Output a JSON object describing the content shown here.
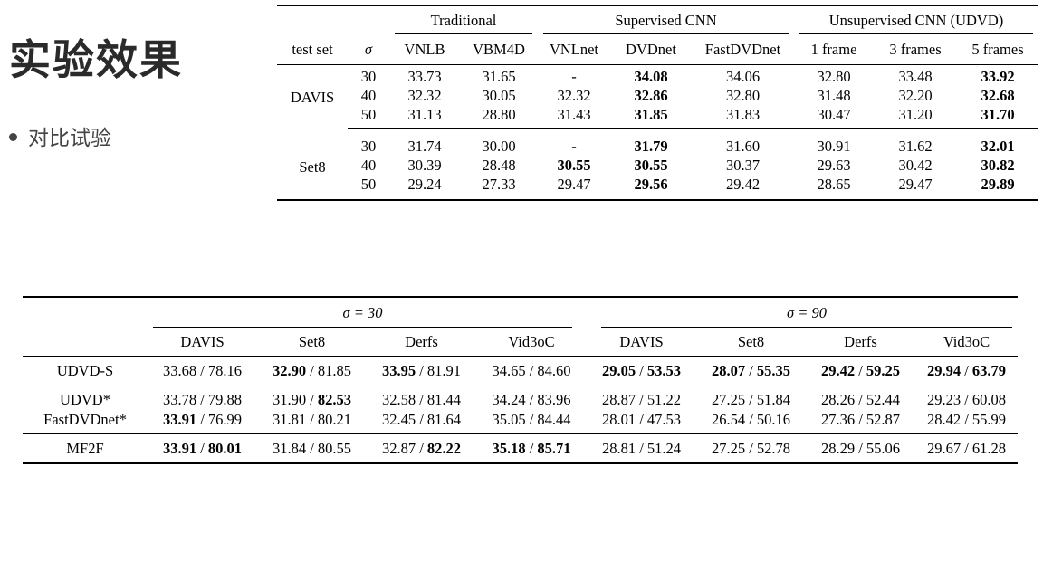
{
  "slide": {
    "title": "实验效果",
    "bullet": "对比试验"
  },
  "table1": {
    "groups": [
      "Traditional",
      "Supervised CNN",
      "Unsupervised CNN (UDVD)"
    ],
    "columns": [
      "test set",
      "σ",
      "VNLB",
      "VBM4D",
      "VNLnet",
      "DVDnet",
      "FastDVDnet",
      "1 frame",
      "3 frames",
      "5 frames"
    ],
    "rows": [
      {
        "set": "DAVIS",
        "sigma": "30",
        "values": [
          "33.73",
          "31.65",
          "-",
          "34.08",
          "34.06",
          "32.80",
          "33.48",
          "33.92"
        ],
        "bold": [
          3,
          7
        ]
      },
      {
        "set": "",
        "sigma": "40",
        "values": [
          "32.32",
          "30.05",
          "32.32",
          "32.86",
          "32.80",
          "31.48",
          "32.20",
          "32.68"
        ],
        "bold": [
          3,
          7
        ]
      },
      {
        "set": "",
        "sigma": "50",
        "values": [
          "31.13",
          "28.80",
          "31.43",
          "31.85",
          "31.83",
          "30.47",
          "31.20",
          "31.70"
        ],
        "bold": [
          3,
          7
        ]
      },
      {
        "set": "Set8",
        "sigma": "30",
        "values": [
          "31.74",
          "30.00",
          "-",
          "31.79",
          "31.60",
          "30.91",
          "31.62",
          "32.01"
        ],
        "bold": [
          3,
          7
        ]
      },
      {
        "set": "",
        "sigma": "40",
        "values": [
          "30.39",
          "28.48",
          "30.55",
          "30.55",
          "30.37",
          "29.63",
          "30.42",
          "30.82"
        ],
        "bold": [
          2,
          3,
          7
        ]
      },
      {
        "set": "",
        "sigma": "50",
        "values": [
          "29.24",
          "27.33",
          "29.47",
          "29.56",
          "29.42",
          "28.65",
          "29.47",
          "29.89"
        ],
        "bold": [
          3,
          7
        ]
      }
    ]
  },
  "table2": {
    "groups": [
      "σ = 30",
      "σ = 90"
    ],
    "columns": [
      "DAVIS",
      "Set8",
      "Derfs",
      "Vid3oC",
      "DAVIS",
      "Set8",
      "Derfs",
      "Vid3oC"
    ],
    "rows": [
      {
        "method": "UDVD-S",
        "cells": [
          {
            "a": "33.68",
            "b": "78.16",
            "ba": false,
            "bb": false
          },
          {
            "a": "32.90",
            "b": "81.85",
            "ba": true,
            "bb": false
          },
          {
            "a": "33.95",
            "b": "81.91",
            "ba": true,
            "bb": false
          },
          {
            "a": "34.65",
            "b": "84.60",
            "ba": false,
            "bb": false
          },
          {
            "a": "29.05",
            "b": "53.53",
            "ba": true,
            "bb": true
          },
          {
            "a": "28.07",
            "b": "55.35",
            "ba": true,
            "bb": true
          },
          {
            "a": "29.42",
            "b": "59.25",
            "ba": true,
            "bb": true
          },
          {
            "a": "29.94",
            "b": "63.79",
            "ba": true,
            "bb": true
          }
        ]
      },
      {
        "method": "UDVD*",
        "cells": [
          {
            "a": "33.78",
            "b": "79.88",
            "ba": false,
            "bb": false
          },
          {
            "a": "31.90",
            "b": "82.53",
            "ba": false,
            "bb": true
          },
          {
            "a": "32.58",
            "b": "81.44",
            "ba": false,
            "bb": false
          },
          {
            "a": "34.24",
            "b": "83.96",
            "ba": false,
            "bb": false
          },
          {
            "a": "28.87",
            "b": "51.22",
            "ba": false,
            "bb": false
          },
          {
            "a": "27.25",
            "b": "51.84",
            "ba": false,
            "bb": false
          },
          {
            "a": "28.26",
            "b": "52.44",
            "ba": false,
            "bb": false
          },
          {
            "a": "29.23",
            "b": "60.08",
            "ba": false,
            "bb": false
          }
        ]
      },
      {
        "method": "FastDVDnet*",
        "cells": [
          {
            "a": "33.91",
            "b": "76.99",
            "ba": true,
            "bb": false
          },
          {
            "a": "31.81",
            "b": "80.21",
            "ba": false,
            "bb": false
          },
          {
            "a": "32.45",
            "b": "81.64",
            "ba": false,
            "bb": false
          },
          {
            "a": "35.05",
            "b": "84.44",
            "ba": false,
            "bb": false
          },
          {
            "a": "28.01",
            "b": "47.53",
            "ba": false,
            "bb": false
          },
          {
            "a": "26.54",
            "b": "50.16",
            "ba": false,
            "bb": false
          },
          {
            "a": "27.36",
            "b": "52.87",
            "ba": false,
            "bb": false
          },
          {
            "a": "28.42",
            "b": "55.99",
            "ba": false,
            "bb": false
          }
        ]
      },
      {
        "method": "MF2F",
        "cells": [
          {
            "a": "33.91",
            "b": "80.01",
            "ba": true,
            "bb": true
          },
          {
            "a": "31.84",
            "b": "80.55",
            "ba": false,
            "bb": false
          },
          {
            "a": "32.87",
            "b": "82.22",
            "ba": false,
            "bb": true
          },
          {
            "a": "35.18",
            "b": "85.71",
            "ba": true,
            "bb": true
          },
          {
            "a": "28.81",
            "b": "51.24",
            "ba": false,
            "bb": false
          },
          {
            "a": "27.25",
            "b": "52.78",
            "ba": false,
            "bb": false
          },
          {
            "a": "28.29",
            "b": "55.06",
            "ba": false,
            "bb": false
          },
          {
            "a": "29.67",
            "b": "61.28",
            "ba": false,
            "bb": false
          }
        ]
      }
    ]
  }
}
